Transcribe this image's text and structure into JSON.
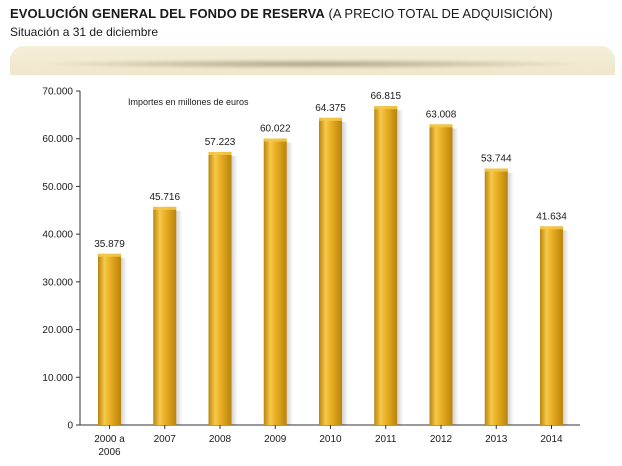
{
  "header": {
    "title_bold": "EVOLUCIÓN GENERAL DEL FONDO DE RESERVA",
    "title_normal": "(A PRECIO TOTAL DE ADQUISICIÓN)",
    "subtitle": "Situación a 31 de diciembre"
  },
  "colors": {
    "bar_light": "#f6c94a",
    "bar_mid": "#e7ac20",
    "bar_dark": "#b9830e",
    "axis": "#333333"
  },
  "chart_data": {
    "type": "bar",
    "title": "EVOLUCIÓN GENERAL DEL FONDO DE RESERVA (A PRECIO TOTAL DE ADQUISICIÓN)",
    "subtitle": "Situación a 31 de diciembre",
    "annotation": "Importes en millones de euros",
    "categories": [
      [
        "2000 a",
        "2006"
      ],
      [
        "2007"
      ],
      [
        "2008"
      ],
      [
        "2009"
      ],
      [
        "2010"
      ],
      [
        "2011"
      ],
      [
        "2012"
      ],
      [
        "2013"
      ],
      [
        "2014"
      ]
    ],
    "values": [
      35879,
      45716,
      57223,
      60022,
      64375,
      66815,
      63008,
      53744,
      41634
    ],
    "value_labels": [
      "35.879",
      "45.716",
      "57.223",
      "60.022",
      "64.375",
      "66.815",
      "63.008",
      "53.744",
      "41.634"
    ],
    "yticks": [
      0,
      10000,
      20000,
      30000,
      40000,
      50000,
      60000,
      70000
    ],
    "ytick_labels": [
      "0",
      "10.000",
      "20.000",
      "30.000",
      "40.000",
      "50.000",
      "60.000",
      "70.000"
    ],
    "ylim": [
      0,
      70000
    ],
    "xlabel": "",
    "ylabel": "",
    "grid": false
  }
}
